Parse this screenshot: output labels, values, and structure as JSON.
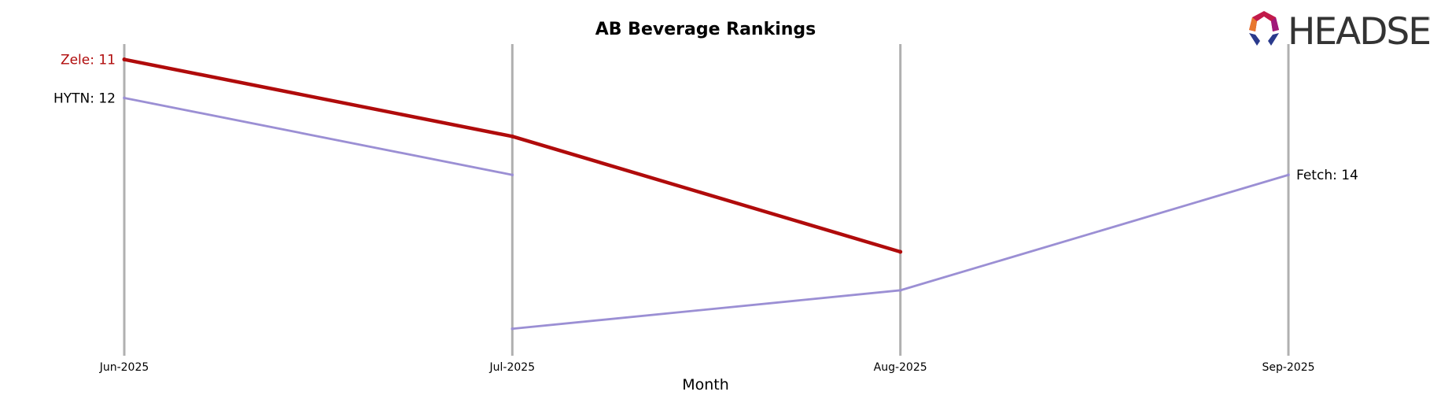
{
  "chart_data": {
    "type": "line",
    "title": "AB Beverage Rankings",
    "xlabel": "Month",
    "ylabel": "",
    "categories": [
      "Jun-2025",
      "Jul-2025",
      "Aug-2025",
      "Sep-2025"
    ],
    "y_inverted": true,
    "ylim": [
      18.7,
      10.6
    ],
    "grid": "vertical gridlines at each month",
    "series": [
      {
        "name": "Zele",
        "values": [
          11,
          13,
          16,
          null
        ],
        "color": "#b00b0b",
        "label": "Zele: 11",
        "label_position": "start"
      },
      {
        "name": "HYTN",
        "values": [
          12,
          14,
          null,
          null
        ],
        "color": "#9b8fd4",
        "label": "HYTN: 12",
        "label_position": "start"
      },
      {
        "name": "Fetch",
        "values": [
          null,
          18,
          17,
          14
        ],
        "color": "#9b8fd4",
        "label": "Fetch: 14",
        "label_position": "end"
      }
    ]
  },
  "logo": {
    "text": "HEADSET",
    "icon": "headset-logo-icon"
  },
  "colors": {
    "gridline": "#b0b0b0",
    "highlight": "#b00b0b",
    "other": "#9b8fd4",
    "logo_text": "#333333"
  }
}
